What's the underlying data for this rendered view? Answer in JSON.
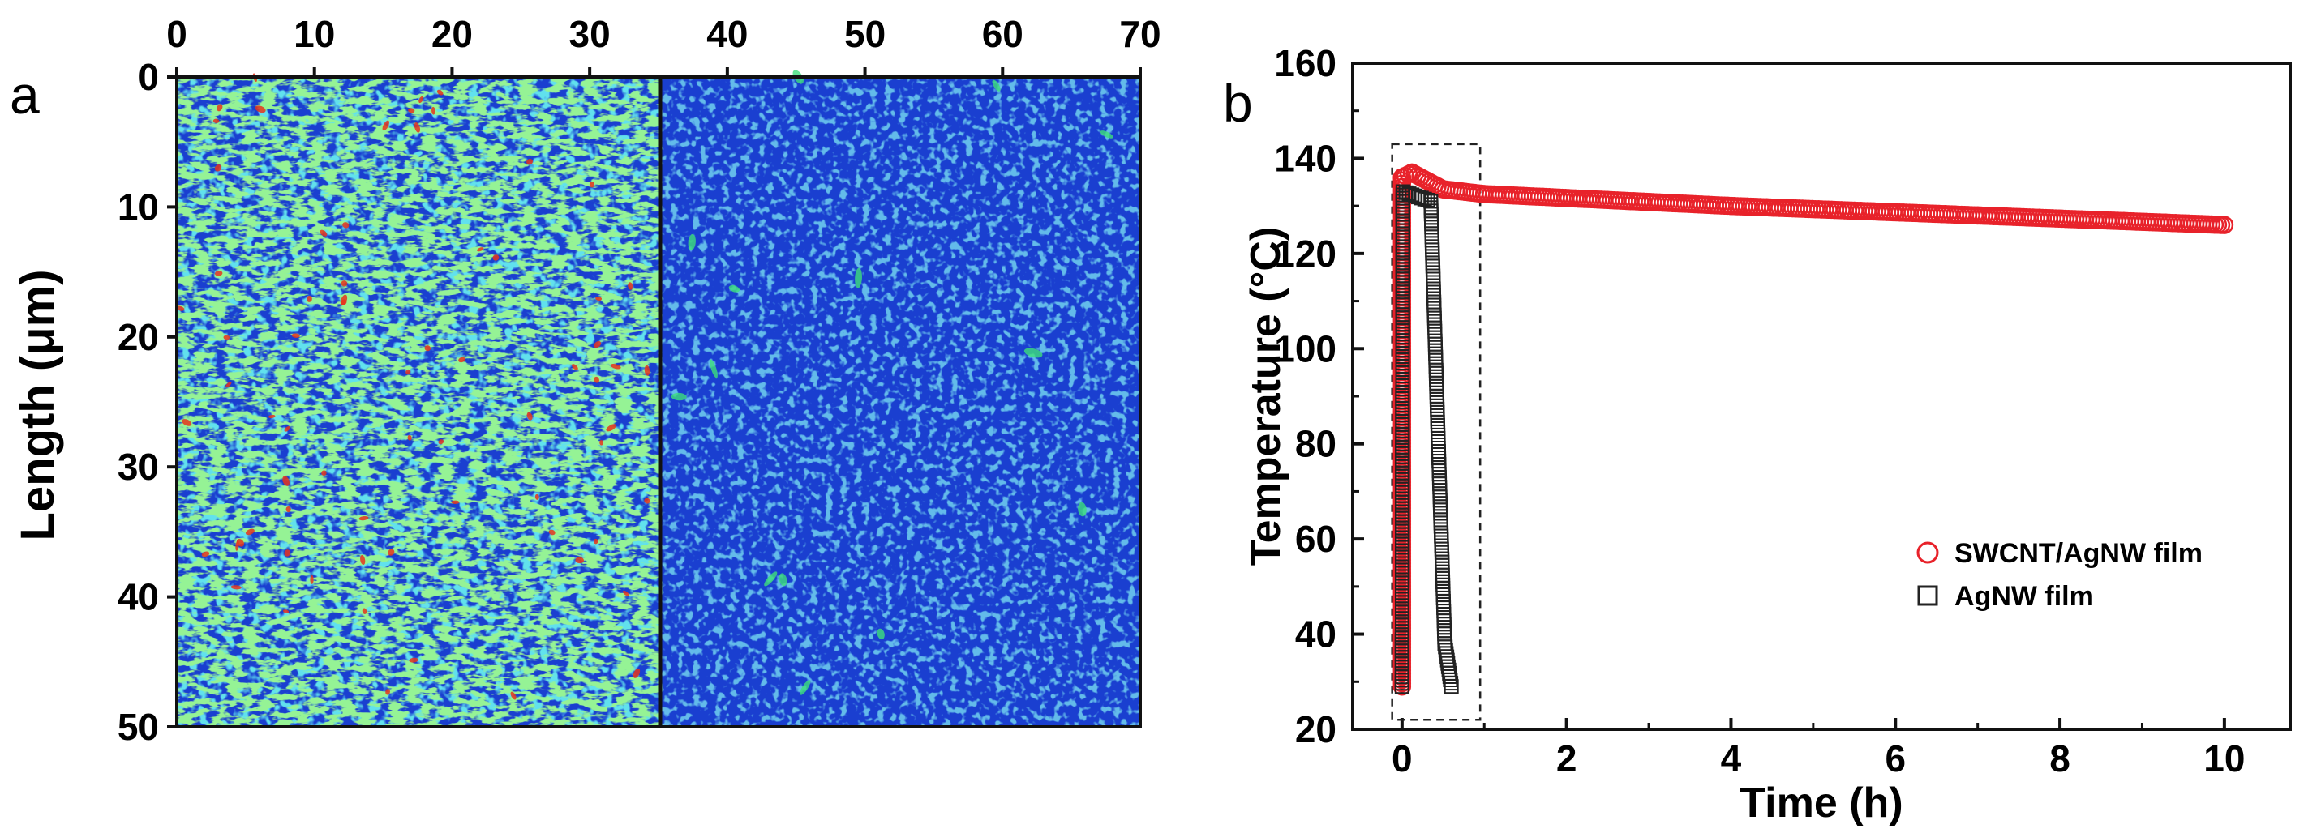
{
  "chart_data": [
    {
      "type": "heatmap",
      "panel_label": "a",
      "ylabel": "Length (μm)",
      "xlabel": "",
      "xlim": [
        0,
        70
      ],
      "ylim": [
        0,
        50
      ],
      "x_ticks": [
        "0",
        "10",
        "20",
        "30",
        "40",
        "50",
        "60",
        "70"
      ],
      "y_ticks": [
        "0",
        "10",
        "20",
        "30",
        "40",
        "50"
      ],
      "divider_x": 35,
      "colormap": [
        "#1535c8",
        "#1f7ae0",
        "#2ec8e6",
        "#3de07a",
        "#a6ec28",
        "#e6341c"
      ],
      "regions": [
        {
          "side": "left",
          "x_range": [
            0,
            35
          ],
          "description_color": "dense green/cyan fibrous network"
        },
        {
          "side": "right",
          "x_range": [
            35,
            70
          ],
          "description_color": "mostly blue with sparse cyan"
        }
      ]
    },
    {
      "type": "scatter",
      "panel_label": "b",
      "xlabel": "Time (h)",
      "ylabel": "Temperature (°C)",
      "xlim": [
        -0.6,
        10.8
      ],
      "ylim": [
        20,
        160
      ],
      "x_ticks": [
        "0",
        "2",
        "4",
        "6",
        "8",
        "10"
      ],
      "y_ticks": [
        "20",
        "40",
        "60",
        "80",
        "100",
        "120",
        "140",
        "160"
      ],
      "legend_position": "bottom-right",
      "highlight_box": {
        "x": [
          -0.12,
          0.95
        ],
        "y": [
          22,
          143
        ]
      },
      "series": [
        {
          "name": "SWCNT/AgNW film",
          "marker": "circle-open",
          "color": "#e8222a",
          "segments": [
            {
              "x": [
                0.0,
                0.0
              ],
              "y": [
                29,
                136
              ]
            },
            {
              "x": [
                0.0,
                0.12
              ],
              "y": [
                136,
                137
              ]
            },
            {
              "x": [
                0.12,
                0.5
              ],
              "y": [
                137,
                133.5
              ]
            },
            {
              "x": [
                0.5,
                1.0
              ],
              "y": [
                133.5,
                132.5
              ]
            },
            {
              "x": [
                1.0,
                4.0
              ],
              "y": [
                132.5,
                130
              ]
            },
            {
              "x": [
                4.0,
                7.0
              ],
              "y": [
                130,
                128
              ]
            },
            {
              "x": [
                7.0,
                10.0
              ],
              "y": [
                128,
                126
              ]
            }
          ]
        },
        {
          "name": "AgNW film",
          "marker": "square-open",
          "color": "#222222",
          "segments": [
            {
              "x": [
                0.0,
                0.01
              ],
              "y": [
                29,
                133
              ]
            },
            {
              "x": [
                0.01,
                0.35
              ],
              "y": [
                133,
                131
              ]
            },
            {
              "x": [
                0.35,
                0.45
              ],
              "y": [
                131,
                75
              ]
            },
            {
              "x": [
                0.45,
                0.52
              ],
              "y": [
                75,
                38
              ]
            },
            {
              "x": [
                0.52,
                0.6
              ],
              "y": [
                38,
                29
              ]
            }
          ]
        }
      ]
    }
  ]
}
